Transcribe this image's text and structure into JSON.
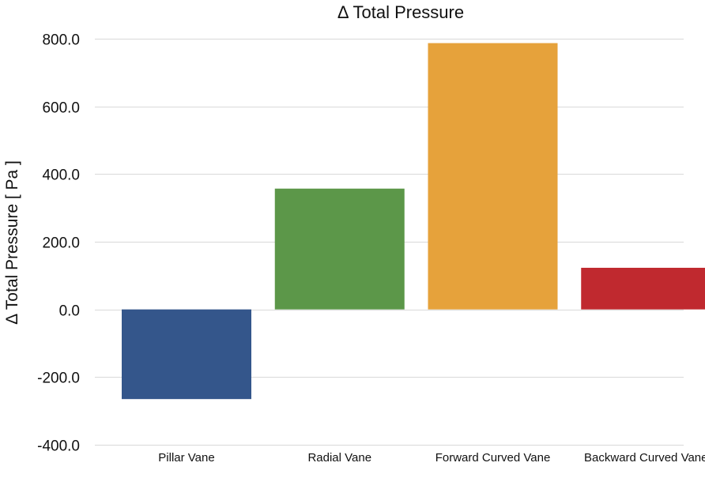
{
  "chart_data": {
    "type": "bar",
    "title": "Δ Total Pressure",
    "xlabel": "",
    "ylabel": "Δ Total Pressure [ Pa ]",
    "categories": [
      "Pillar Vane",
      "Radial Vane",
      "Forward Curved Vane",
      "Backward Curved Vane"
    ],
    "values": [
      -265,
      357,
      787,
      123
    ],
    "colors": [
      "#34568b",
      "#5c9749",
      "#e6a23b",
      "#c0292f"
    ],
    "ylim": [
      -400,
      800
    ],
    "yticks": [
      800,
      600,
      400,
      200,
      0,
      -200,
      -400
    ],
    "ytick_labels": [
      "800.0",
      "600.0",
      "400.0",
      "200.0",
      "0.0",
      "-200.0",
      "-400.0"
    ],
    "grid": true,
    "legend": "none"
  }
}
